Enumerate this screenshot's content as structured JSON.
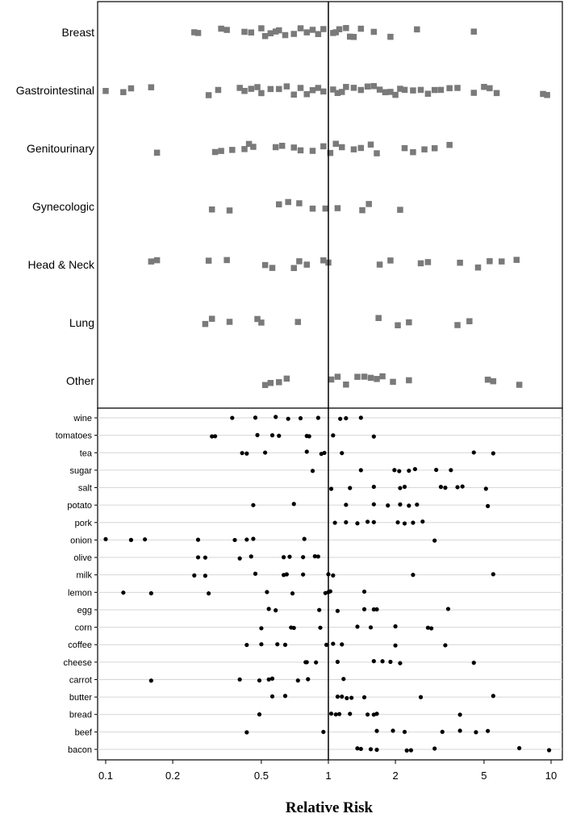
{
  "chart_data": [
    {
      "type": "scatter",
      "panel": "cancer-site",
      "x_scale": "log",
      "xlim": [
        0.095,
        10.5
      ],
      "reference_line": 1,
      "marker": "square",
      "color": "#7a7a7a",
      "categories": [
        "Breast",
        "Gastrointestinal",
        "Genitourinary",
        "Gynecologic",
        "Head & Neck",
        "Lung",
        "Other"
      ],
      "series": [
        {
          "category": "Breast",
          "x": [
            0.25,
            0.26,
            0.33,
            0.35,
            0.42,
            0.45,
            0.5,
            0.52,
            0.55,
            0.58,
            0.6,
            0.64,
            0.7,
            0.75,
            0.8,
            0.85,
            0.9,
            0.95,
            1.05,
            1.08,
            1.12,
            1.2,
            1.25,
            1.3,
            1.4,
            1.6,
            1.9,
            2.5,
            4.5
          ]
        },
        {
          "category": "Gastrointestinal",
          "x": [
            0.1,
            0.12,
            0.13,
            0.16,
            0.29,
            0.32,
            0.4,
            0.42,
            0.45,
            0.48,
            0.5,
            0.55,
            0.6,
            0.65,
            0.7,
            0.75,
            0.8,
            0.85,
            0.9,
            0.95,
            1.05,
            1.1,
            1.15,
            1.2,
            1.3,
            1.4,
            1.5,
            1.6,
            1.7,
            1.8,
            1.9,
            2.0,
            2.1,
            2.2,
            2.4,
            2.6,
            2.8,
            3.0,
            3.2,
            3.5,
            3.8,
            4.5,
            5.0,
            5.3,
            5.7,
            9.2,
            9.6
          ]
        },
        {
          "category": "Genitourinary",
          "x": [
            0.17,
            0.31,
            0.33,
            0.37,
            0.42,
            0.44,
            0.46,
            0.58,
            0.62,
            0.7,
            0.75,
            0.85,
            0.95,
            1.02,
            1.08,
            1.15,
            1.3,
            1.4,
            1.55,
            1.65,
            2.2,
            2.4,
            2.7,
            3.0,
            3.5
          ]
        },
        {
          "category": "Gynecologic",
          "x": [
            0.3,
            0.36,
            0.6,
            0.66,
            0.74,
            0.85,
            0.97,
            1.1,
            1.42,
            1.52,
            2.1
          ]
        },
        {
          "category": "Head & Neck",
          "x": [
            0.16,
            0.17,
            0.29,
            0.35,
            0.52,
            0.56,
            0.7,
            0.74,
            0.8,
            0.95,
            1.0,
            1.7,
            1.9,
            2.6,
            2.8,
            3.9,
            4.7,
            5.3,
            6.0,
            7.0
          ]
        },
        {
          "category": "Lung",
          "x": [
            0.28,
            0.3,
            0.36,
            0.48,
            0.5,
            0.73,
            1.68,
            2.05,
            2.3,
            3.8,
            4.3
          ]
        },
        {
          "category": "Other",
          "x": [
            0.52,
            0.55,
            0.6,
            0.65,
            1.03,
            1.1,
            1.2,
            1.35,
            1.45,
            1.55,
            1.65,
            1.75,
            1.95,
            2.3,
            5.2,
            5.5,
            7.2
          ]
        }
      ]
    },
    {
      "type": "scatter",
      "panel": "food",
      "x_scale": "log",
      "xlim": [
        0.095,
        10.5
      ],
      "xlabel": "Relative Risk",
      "xticks": [
        "0.1",
        "0.2",
        "0.5",
        "1",
        "2",
        "5",
        "10"
      ],
      "xtick_values": [
        0.1,
        0.2,
        0.5,
        1,
        2,
        5,
        10
      ],
      "reference_line": 1,
      "marker": "dot",
      "color": "#000000",
      "categories": [
        "wine",
        "tomatoes",
        "tea",
        "sugar",
        "salt",
        "potato",
        "pork",
        "onion",
        "olive",
        "milk",
        "lemon",
        "egg",
        "corn",
        "coffee",
        "cheese",
        "carrot",
        "butter",
        "bread",
        "beef",
        "bacon"
      ],
      "series": [
        {
          "category": "wine",
          "x": [
            0.37,
            0.47,
            0.58,
            0.66,
            0.75,
            0.9,
            1.13,
            1.2,
            1.4
          ]
        },
        {
          "category": "tomatoes",
          "x": [
            0.3,
            0.31,
            0.48,
            0.56,
            0.6,
            0.8,
            0.82,
            1.05,
            1.6
          ]
        },
        {
          "category": "tea",
          "x": [
            0.41,
            0.43,
            0.52,
            0.8,
            0.93,
            0.96,
            1.15,
            4.5,
            5.5
          ]
        },
        {
          "category": "sugar",
          "x": [
            0.85,
            1.4,
            1.98,
            2.08,
            2.3,
            2.45,
            3.05,
            3.55
          ]
        },
        {
          "category": "salt",
          "x": [
            1.03,
            1.25,
            1.6,
            2.1,
            2.2,
            3.2,
            3.35,
            3.8,
            4.0,
            5.1
          ]
        },
        {
          "category": "potato",
          "x": [
            0.46,
            0.7,
            1.2,
            1.6,
            1.85,
            2.1,
            2.3,
            2.5,
            5.2
          ]
        },
        {
          "category": "pork",
          "x": [
            1.07,
            1.2,
            1.35,
            1.5,
            1.6,
            2.05,
            2.2,
            2.4,
            2.65
          ]
        },
        {
          "category": "onion",
          "x": [
            0.1,
            0.13,
            0.15,
            0.26,
            0.38,
            0.43,
            0.46,
            0.78,
            3.0
          ]
        },
        {
          "category": "olive",
          "x": [
            0.26,
            0.28,
            0.4,
            0.45,
            0.63,
            0.67,
            0.77,
            0.87,
            0.9
          ]
        },
        {
          "category": "milk",
          "x": [
            0.25,
            0.28,
            0.47,
            0.63,
            0.65,
            0.77,
            1.0,
            1.05,
            2.4,
            5.5
          ]
        },
        {
          "category": "lemon",
          "x": [
            0.12,
            0.16,
            0.29,
            0.53,
            0.69,
            0.97,
            1.0,
            1.02,
            1.45
          ]
        },
        {
          "category": "egg",
          "x": [
            0.54,
            0.58,
            0.91,
            1.1,
            1.45,
            1.6,
            1.65,
            3.45
          ]
        },
        {
          "category": "corn",
          "x": [
            0.5,
            0.68,
            0.7,
            0.92,
            1.35,
            1.55,
            2.0,
            2.8,
            2.9
          ]
        },
        {
          "category": "coffee",
          "x": [
            0.43,
            0.5,
            0.59,
            0.64,
            0.98,
            1.05,
            1.15,
            2.0,
            3.35
          ]
        },
        {
          "category": "cheese",
          "x": [
            0.79,
            0.8,
            0.88,
            1.1,
            1.6,
            1.75,
            1.9,
            2.1,
            4.5
          ]
        },
        {
          "category": "carrot",
          "x": [
            0.16,
            0.4,
            0.49,
            0.54,
            0.56,
            0.73,
            0.81,
            1.17
          ]
        },
        {
          "category": "butter",
          "x": [
            0.56,
            0.64,
            1.1,
            1.15,
            1.21,
            1.27,
            1.45,
            2.6,
            5.5
          ]
        },
        {
          "category": "bread",
          "x": [
            0.49,
            1.03,
            1.08,
            1.12,
            1.25,
            1.5,
            1.6,
            1.65,
            3.9
          ]
        },
        {
          "category": "beef",
          "x": [
            0.43,
            0.95,
            1.65,
            1.95,
            2.2,
            3.25,
            3.9,
            4.6,
            5.2
          ]
        },
        {
          "category": "bacon",
          "x": [
            1.35,
            1.4,
            1.55,
            1.65,
            2.25,
            2.35,
            3.0,
            7.2,
            9.8
          ]
        }
      ]
    }
  ]
}
